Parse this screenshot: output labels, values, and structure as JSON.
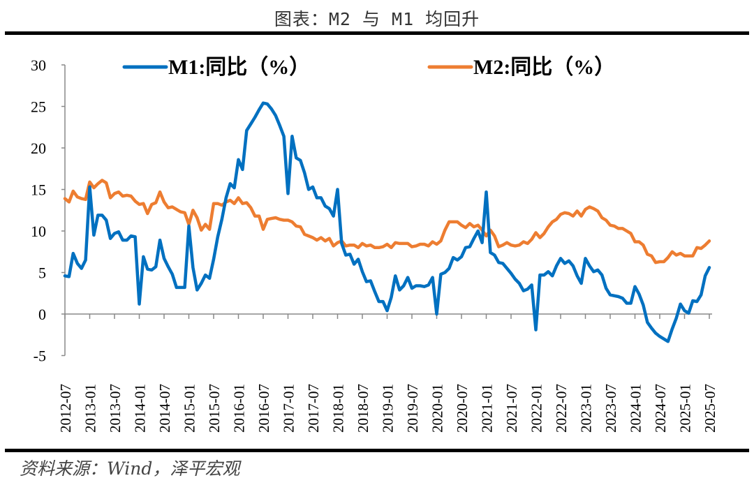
{
  "header": {
    "title": "图表：M2 与 M1 均回升"
  },
  "footer": {
    "source": "资料来源：Wind，泽平宏观"
  },
  "chart_data": {
    "type": "line",
    "title": "图表：M2 与 M1 均回升",
    "xlabel": "",
    "ylabel": "",
    "ylim": [
      -5,
      30
    ],
    "yticks": [
      "-5",
      "0",
      "5",
      "10",
      "15",
      "20",
      "25",
      "30"
    ],
    "x_start": "2012-07",
    "x_end": "2025-07",
    "frequency": "monthly",
    "xticks": [
      "2012-07",
      "2013-01",
      "2013-07",
      "2014-01",
      "2014-07",
      "2015-01",
      "2015-07",
      "2016-01",
      "2016-07",
      "2017-01",
      "2017-07",
      "2018-01",
      "2018-07",
      "2019-01",
      "2019-07",
      "2020-01",
      "2020-07",
      "2021-01",
      "2021-07",
      "2022-01",
      "2022-07",
      "2023-01",
      "2023-07",
      "2024-01",
      "2024-07",
      "2025-01",
      "2025-07"
    ],
    "grid": false,
    "legend_position": "top",
    "series": [
      {
        "name": "M1:同比（%）",
        "color": "#0070C0",
        "values": [
          4.6,
          4.5,
          7.3,
          6.1,
          5.5,
          6.5,
          15.3,
          9.5,
          11.9,
          11.9,
          11.3,
          9.1,
          9.7,
          9.9,
          8.9,
          8.9,
          9.4,
          9.3,
          1.2,
          6.9,
          5.4,
          5.3,
          5.7,
          8.9,
          6.7,
          5.7,
          4.8,
          3.2,
          3.2,
          3.2,
          10.6,
          5.6,
          2.9,
          3.7,
          4.7,
          4.3,
          6.6,
          9.3,
          11.4,
          14.0,
          15.7,
          15.2,
          18.6,
          17.4,
          22.1,
          22.9,
          23.7,
          24.6,
          25.4,
          25.3,
          24.7,
          23.9,
          22.7,
          21.4,
          14.5,
          21.4,
          18.8,
          18.5,
          17.0,
          15.0,
          15.3,
          14.0,
          14.0,
          13.0,
          12.7,
          11.8,
          15.0,
          8.5,
          7.1,
          7.2,
          6.0,
          6.6,
          5.1,
          3.9,
          4.0,
          2.7,
          1.5,
          1.5,
          0.4,
          2.0,
          4.6,
          2.9,
          3.4,
          4.4,
          3.1,
          3.4,
          3.4,
          3.3,
          3.5,
          4.4,
          0.0,
          4.8,
          5.0,
          5.5,
          6.8,
          6.5,
          6.9,
          8.0,
          8.1,
          9.1,
          10.0,
          8.6,
          14.7,
          7.4,
          7.1,
          6.2,
          6.1,
          5.5,
          4.9,
          4.2,
          3.7,
          2.8,
          3.0,
          3.5,
          -1.9,
          4.7,
          4.7,
          5.1,
          4.6,
          5.8,
          6.7,
          6.1,
          6.4,
          5.8,
          4.6,
          3.7,
          6.7,
          5.8,
          5.1,
          5.3,
          4.7,
          3.1,
          2.3,
          2.2,
          2.1,
          1.9,
          1.3,
          1.3,
          3.3,
          2.4,
          1.1,
          -1.0,
          -1.7,
          -2.3,
          -2.7,
          -3.0,
          -3.3,
          -1.8,
          -0.5,
          1.2,
          0.4,
          0.1,
          1.6,
          1.5,
          2.3,
          4.6,
          5.6
        ]
      },
      {
        "name": "M2:同比（%）",
        "color": "#ED7D31",
        "values": [
          13.9,
          13.5,
          14.8,
          14.1,
          13.9,
          13.8,
          15.9,
          15.2,
          15.7,
          16.1,
          15.8,
          14.0,
          14.5,
          14.7,
          14.2,
          14.3,
          14.2,
          13.6,
          13.2,
          13.3,
          12.1,
          13.2,
          13.4,
          14.7,
          13.5,
          12.8,
          12.9,
          12.6,
          12.3,
          12.2,
          10.8,
          12.5,
          11.6,
          10.1,
          10.8,
          10.2,
          13.3,
          13.3,
          13.1,
          13.5,
          13.7,
          13.3,
          14.0,
          13.3,
          13.4,
          12.8,
          11.8,
          11.8,
          10.2,
          11.4,
          11.5,
          11.6,
          11.4,
          11.3,
          11.3,
          11.1,
          10.6,
          10.5,
          9.6,
          9.4,
          9.2,
          8.9,
          9.2,
          8.8,
          9.1,
          8.2,
          8.6,
          8.8,
          8.2,
          8.3,
          8.3,
          8.0,
          8.5,
          8.2,
          8.3,
          8.0,
          8.0,
          8.1,
          8.4,
          8.0,
          8.6,
          8.5,
          8.5,
          8.5,
          8.1,
          8.2,
          8.4,
          8.4,
          8.2,
          8.7,
          8.4,
          8.8,
          10.1,
          11.1,
          11.1,
          11.1,
          10.7,
          10.4,
          10.9,
          10.5,
          10.7,
          10.1,
          9.4,
          10.1,
          9.4,
          8.1,
          8.3,
          8.6,
          8.3,
          8.2,
          8.3,
          8.7,
          8.5,
          9.0,
          9.8,
          9.2,
          9.7,
          10.5,
          11.1,
          11.4,
          12.0,
          12.2,
          12.1,
          11.8,
          12.4,
          11.8,
          12.6,
          12.9,
          12.7,
          12.4,
          11.6,
          11.3,
          10.7,
          10.6,
          10.3,
          10.3,
          10.0,
          9.7,
          8.7,
          8.7,
          8.3,
          7.2,
          7.0,
          6.2,
          6.3,
          6.3,
          6.8,
          7.5,
          7.1,
          7.3,
          7.0,
          7.0,
          7.0,
          8.0,
          7.9,
          8.3,
          8.8
        ]
      }
    ]
  }
}
